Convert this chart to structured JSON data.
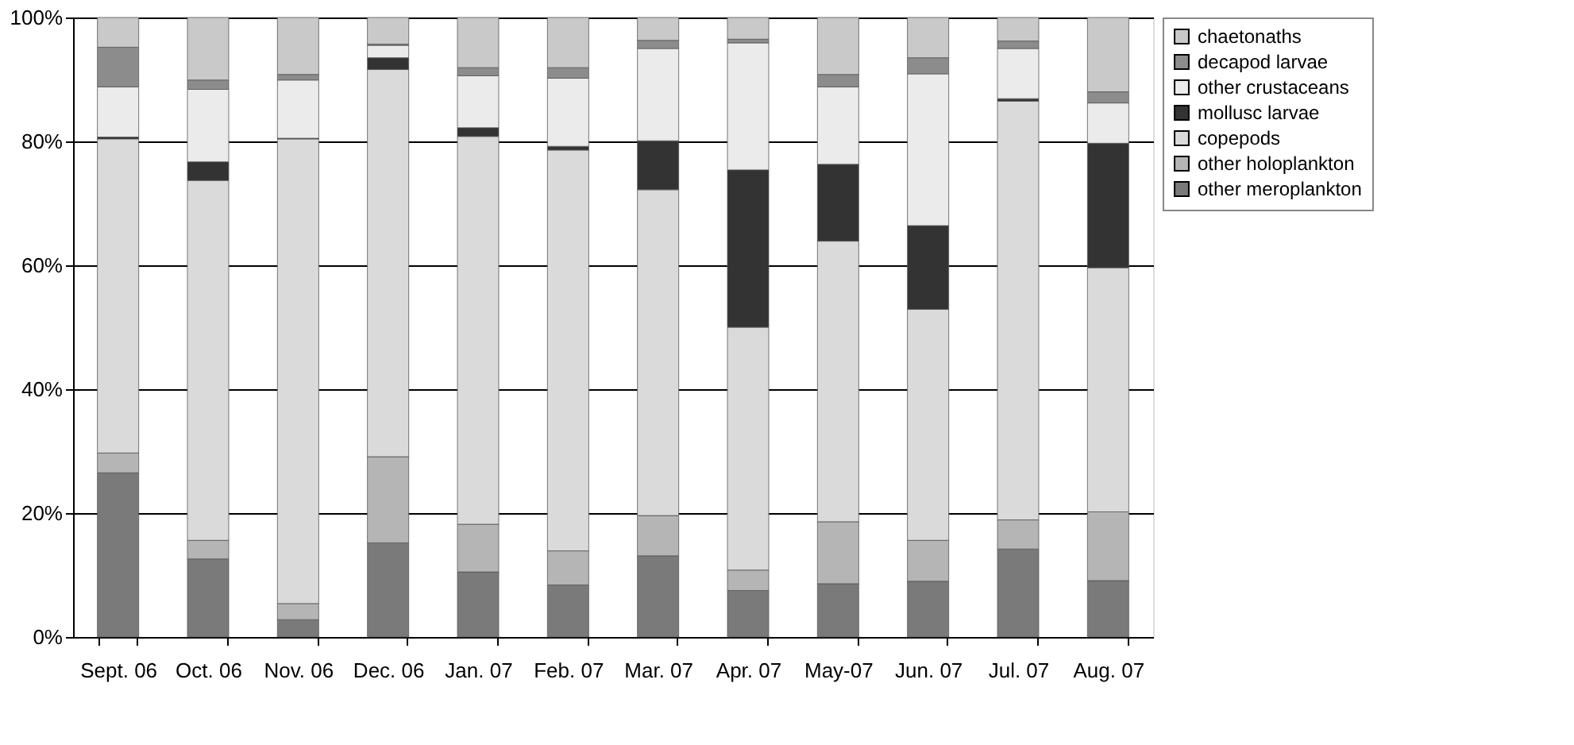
{
  "chart_data": {
    "type": "bar",
    "stacked": true,
    "categories": [
      "Sept. 06",
      "Oct. 06",
      "Nov. 06",
      "Dec. 06",
      "Jan. 07",
      "Feb. 07",
      "Mar. 07",
      "Apr. 07",
      "May-07",
      "Jun. 07",
      "Jul. 07",
      "Aug. 07"
    ],
    "series": [
      {
        "name": "other meroplankton",
        "color": "#7a7a7a",
        "values": [
          26.5,
          12.6,
          2.8,
          15.2,
          10.5,
          8.4,
          13.1,
          7.5,
          8.6,
          9.0,
          14.2,
          9.1
        ]
      },
      {
        "name": "other holoplankton",
        "color": "#b5b5b5",
        "values": [
          3.2,
          3.0,
          2.6,
          13.9,
          7.7,
          5.5,
          6.5,
          3.3,
          10.0,
          6.6,
          4.7,
          11.1
        ]
      },
      {
        "name": "copepods",
        "color": "#dadada",
        "values": [
          50.7,
          58.1,
          75.0,
          62.5,
          62.6,
          64.7,
          52.6,
          39.2,
          45.3,
          37.3,
          67.6,
          39.4
        ]
      },
      {
        "name": "mollusc larvae",
        "color": "#333333",
        "values": [
          0.3,
          3.0,
          0.1,
          1.9,
          1.4,
          0.6,
          7.9,
          25.4,
          12.4,
          13.5,
          0.4,
          20.1
        ]
      },
      {
        "name": "other crustaceans",
        "color": "#ebebeb",
        "values": [
          8.1,
          11.7,
          9.4,
          2.0,
          8.4,
          11.0,
          14.9,
          20.5,
          12.5,
          24.5,
          8.1,
          6.5
        ]
      },
      {
        "name": "decapod larvae",
        "color": "#8c8c8c",
        "values": [
          6.4,
          1.5,
          0.9,
          0.2,
          1.3,
          1.7,
          1.3,
          0.6,
          2.0,
          2.6,
          1.2,
          1.8
        ]
      },
      {
        "name": "chaetonaths",
        "color": "#c9c9c9",
        "values": [
          4.8,
          10.1,
          9.2,
          4.3,
          8.1,
          8.1,
          3.7,
          3.5,
          9.2,
          6.5,
          3.8,
          12.0
        ]
      }
    ],
    "ylim": [
      0,
      100
    ],
    "yticks": [
      {
        "value": 0,
        "label": "0%"
      },
      {
        "value": 20,
        "label": "20%"
      },
      {
        "value": 40,
        "label": "40%"
      },
      {
        "value": 60,
        "label": "60%"
      },
      {
        "value": 80,
        "label": "80%"
      },
      {
        "value": 100,
        "label": "100%"
      }
    ],
    "grid": "y",
    "legend": "right"
  }
}
